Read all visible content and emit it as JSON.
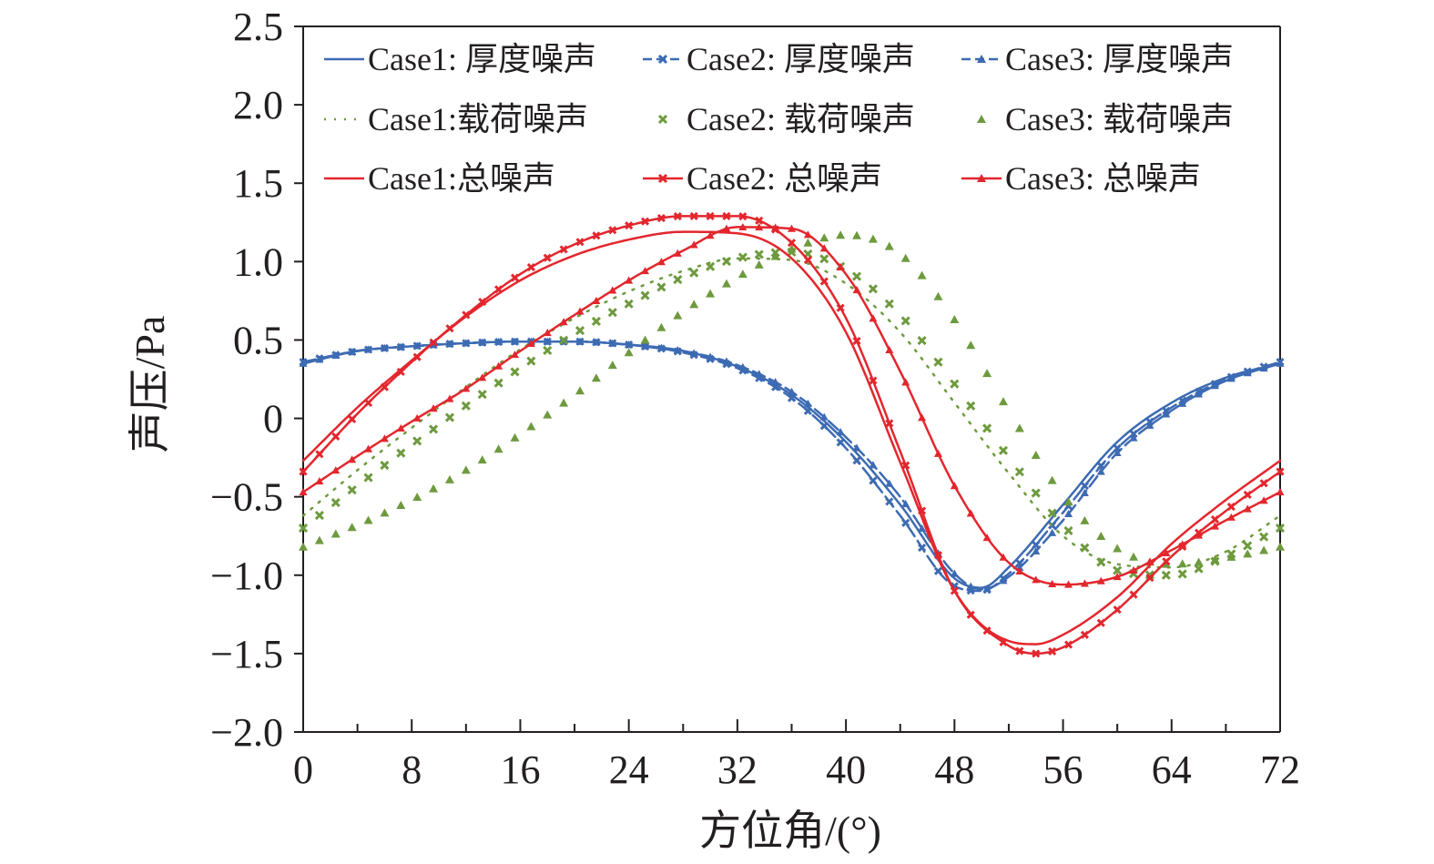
{
  "chart_data": {
    "type": "line",
    "title": "",
    "xlabel": "方位角/(°)",
    "ylabel": "声压/Pa",
    "xlim": [
      0,
      72
    ],
    "ylim": [
      -2.0,
      2.5
    ],
    "x_ticks": [
      0,
      8,
      16,
      24,
      32,
      40,
      48,
      56,
      64,
      72
    ],
    "y_ticks": [
      -2.0,
      -1.5,
      -1.0,
      -0.5,
      0,
      0.5,
      1.0,
      1.5,
      2.0,
      2.5
    ],
    "y_tick_labels": [
      "−2.0",
      "−1.5",
      "−1.0",
      "−0.5",
      "0",
      "0.5",
      "1.0",
      "1.5",
      "2.0",
      "2.5"
    ],
    "grid": false,
    "legend_position": "top",
    "colors": {
      "thickness": "#3d6bb3",
      "loading": "#6e9a3e",
      "total": "#e3262d"
    },
    "series": [
      {
        "name": "Case1: 厚度噪声",
        "style": "solid",
        "marker": "none",
        "color": "#3d6bb3",
        "points": [
          [
            0,
            0.35
          ],
          [
            4,
            0.43
          ],
          [
            8,
            0.46
          ],
          [
            12,
            0.48
          ],
          [
            16,
            0.49
          ],
          [
            20,
            0.49
          ],
          [
            24,
            0.47
          ],
          [
            28,
            0.43
          ],
          [
            32,
            0.33
          ],
          [
            36,
            0.15
          ],
          [
            40,
            -0.15
          ],
          [
            44,
            -0.55
          ],
          [
            48,
            -1.02
          ],
          [
            50,
            -1.08
          ],
          [
            52,
            -0.95
          ],
          [
            56,
            -0.55
          ],
          [
            60,
            -0.15
          ],
          [
            64,
            0.1
          ],
          [
            68,
            0.26
          ],
          [
            72,
            0.35
          ]
        ]
      },
      {
        "name": "Case2: 厚度噪声",
        "style": "dashed",
        "marker": "x",
        "color": "#3d6bb3",
        "points": [
          [
            0,
            0.36
          ],
          [
            4,
            0.43
          ],
          [
            8,
            0.46
          ],
          [
            12,
            0.48
          ],
          [
            16,
            0.49
          ],
          [
            20,
            0.49
          ],
          [
            24,
            0.47
          ],
          [
            28,
            0.42
          ],
          [
            32,
            0.32
          ],
          [
            36,
            0.13
          ],
          [
            40,
            -0.19
          ],
          [
            44,
            -0.62
          ],
          [
            48,
            -1.07
          ],
          [
            50,
            -1.1
          ],
          [
            52,
            -0.99
          ],
          [
            56,
            -0.6
          ],
          [
            60,
            -0.19
          ],
          [
            64,
            0.07
          ],
          [
            68,
            0.25
          ],
          [
            72,
            0.36
          ]
        ]
      },
      {
        "name": "Case3: 厚度噪声",
        "style": "dashed",
        "marker": "triangle",
        "color": "#3d6bb3",
        "points": [
          [
            0,
            0.35
          ],
          [
            4,
            0.43
          ],
          [
            8,
            0.46
          ],
          [
            12,
            0.48
          ],
          [
            16,
            0.49
          ],
          [
            20,
            0.49
          ],
          [
            24,
            0.47
          ],
          [
            28,
            0.43
          ],
          [
            32,
            0.34
          ],
          [
            36,
            0.17
          ],
          [
            40,
            -0.12
          ],
          [
            44,
            -0.5
          ],
          [
            48,
            -0.99
          ],
          [
            50,
            -1.09
          ],
          [
            52,
            -1.01
          ],
          [
            56,
            -0.65
          ],
          [
            60,
            -0.22
          ],
          [
            64,
            0.05
          ],
          [
            68,
            0.24
          ],
          [
            72,
            0.35
          ]
        ]
      },
      {
        "name": "Case1:载荷噪声",
        "style": "dotted",
        "marker": "none",
        "color": "#6e9a3e",
        "points": [
          [
            0,
            -0.62
          ],
          [
            4,
            -0.33
          ],
          [
            8,
            -0.06
          ],
          [
            12,
            0.2
          ],
          [
            16,
            0.44
          ],
          [
            20,
            0.64
          ],
          [
            24,
            0.81
          ],
          [
            28,
            0.94
          ],
          [
            32,
            1.02
          ],
          [
            36,
            1.01
          ],
          [
            40,
            0.86
          ],
          [
            44,
            0.55
          ],
          [
            48,
            0.1
          ],
          [
            52,
            -0.35
          ],
          [
            56,
            -0.75
          ],
          [
            60,
            -0.93
          ],
          [
            64,
            -0.95
          ],
          [
            68,
            -0.85
          ],
          [
            72,
            -0.62
          ]
        ]
      },
      {
        "name": "Case2: 载荷噪声",
        "style": "dotted",
        "marker": "x",
        "color": "#6e9a3e",
        "points": [
          [
            0,
            -0.7
          ],
          [
            4,
            -0.43
          ],
          [
            8,
            -0.17
          ],
          [
            12,
            0.08
          ],
          [
            16,
            0.32
          ],
          [
            20,
            0.54
          ],
          [
            24,
            0.73
          ],
          [
            28,
            0.9
          ],
          [
            32,
            1.02
          ],
          [
            36,
            1.06
          ],
          [
            40,
            0.95
          ],
          [
            44,
            0.66
          ],
          [
            48,
            0.22
          ],
          [
            52,
            -0.25
          ],
          [
            56,
            -0.68
          ],
          [
            60,
            -0.97
          ],
          [
            64,
            -1.0
          ],
          [
            68,
            -0.88
          ],
          [
            72,
            -0.7
          ]
        ]
      },
      {
        "name": "Case3: 载荷噪声",
        "style": "dotted",
        "marker": "triangle",
        "color": "#6e9a3e",
        "points": [
          [
            0,
            -0.82
          ],
          [
            4,
            -0.68
          ],
          [
            8,
            -0.52
          ],
          [
            12,
            -0.33
          ],
          [
            16,
            -0.1
          ],
          [
            20,
            0.15
          ],
          [
            24,
            0.42
          ],
          [
            28,
            0.68
          ],
          [
            32,
            0.9
          ],
          [
            36,
            1.08
          ],
          [
            40,
            1.17
          ],
          [
            44,
            1.05
          ],
          [
            48,
            0.63
          ],
          [
            52,
            0.05
          ],
          [
            56,
            -0.49
          ],
          [
            60,
            -0.83
          ],
          [
            64,
            -0.93
          ],
          [
            68,
            -0.89
          ],
          [
            72,
            -0.82
          ]
        ]
      },
      {
        "name": "Case1:总噪声",
        "style": "solid",
        "marker": "none",
        "color": "#e3262d",
        "points": [
          [
            0,
            -0.27
          ],
          [
            4,
            0.07
          ],
          [
            8,
            0.37
          ],
          [
            12,
            0.65
          ],
          [
            16,
            0.88
          ],
          [
            20,
            1.04
          ],
          [
            24,
            1.14
          ],
          [
            28,
            1.19
          ],
          [
            32,
            1.18
          ],
          [
            36,
            1.02
          ],
          [
            40,
            0.55
          ],
          [
            44,
            -0.28
          ],
          [
            48,
            -1.1
          ],
          [
            52,
            -1.42
          ],
          [
            54,
            -1.44
          ],
          [
            56,
            -1.38
          ],
          [
            60,
            -1.14
          ],
          [
            64,
            -0.8
          ],
          [
            68,
            -0.52
          ],
          [
            72,
            -0.27
          ]
        ]
      },
      {
        "name": "Case2: 总噪声",
        "style": "solid",
        "marker": "x",
        "color": "#e3262d",
        "points": [
          [
            0,
            -0.34
          ],
          [
            4,
            0.03
          ],
          [
            8,
            0.36
          ],
          [
            12,
            0.66
          ],
          [
            16,
            0.92
          ],
          [
            20,
            1.11
          ],
          [
            24,
            1.23
          ],
          [
            28,
            1.29
          ],
          [
            32,
            1.29
          ],
          [
            36,
            1.12
          ],
          [
            40,
            0.64
          ],
          [
            44,
            -0.21
          ],
          [
            48,
            -1.1
          ],
          [
            52,
            -1.45
          ],
          [
            54,
            -1.5
          ],
          [
            56,
            -1.46
          ],
          [
            60,
            -1.22
          ],
          [
            64,
            -0.88
          ],
          [
            68,
            -0.59
          ],
          [
            72,
            -0.34
          ]
        ]
      },
      {
        "name": "Case3: 总噪声",
        "style": "solid",
        "marker": "triangle",
        "color": "#e3262d",
        "points": [
          [
            0,
            -0.47
          ],
          [
            4,
            -0.24
          ],
          [
            8,
            -0.02
          ],
          [
            12,
            0.19
          ],
          [
            16,
            0.43
          ],
          [
            20,
            0.66
          ],
          [
            24,
            0.88
          ],
          [
            28,
            1.07
          ],
          [
            32,
            1.22
          ],
          [
            36,
            1.21
          ],
          [
            40,
            0.92
          ],
          [
            44,
            0.3
          ],
          [
            48,
            -0.43
          ],
          [
            52,
            -0.92
          ],
          [
            56,
            -1.06
          ],
          [
            60,
            -1.01
          ],
          [
            64,
            -0.84
          ],
          [
            68,
            -0.65
          ],
          [
            72,
            -0.47
          ]
        ]
      }
    ]
  }
}
